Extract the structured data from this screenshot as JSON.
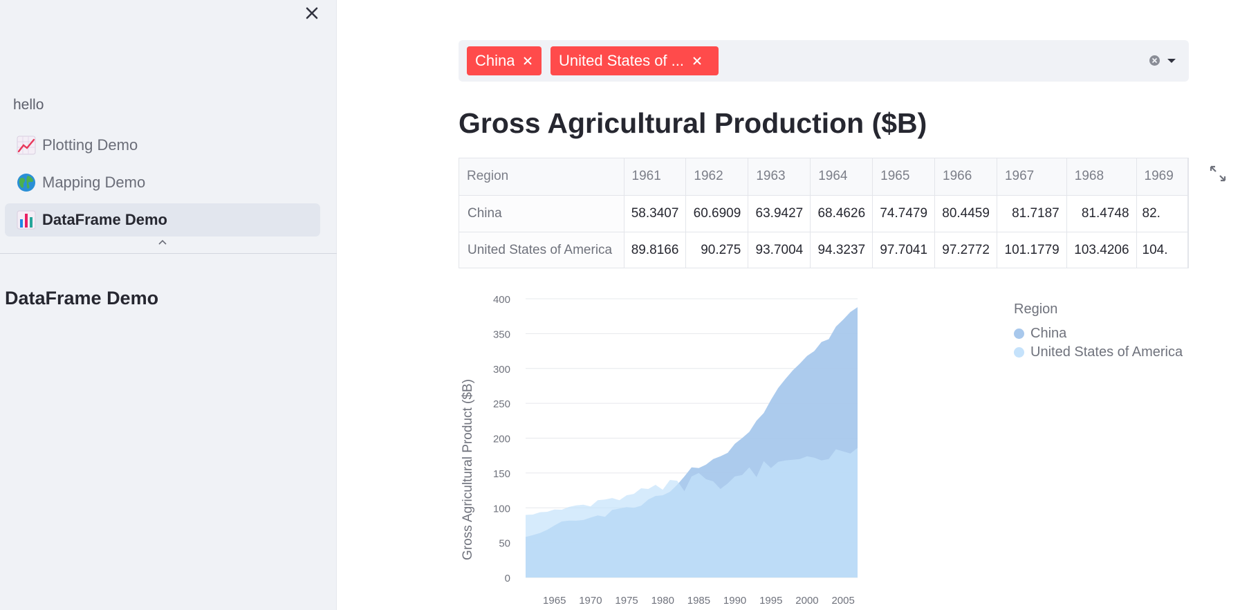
{
  "sidebar": {
    "heading": "hello",
    "items": [
      {
        "label": "Plotting Demo",
        "icon": "chart-increasing-icon",
        "active": false
      },
      {
        "label": "Mapping Demo",
        "icon": "globe-icon",
        "active": false
      },
      {
        "label": "DataFrame Demo",
        "icon": "bar-chart-icon",
        "active": true
      }
    ],
    "page_title": "DataFrame Demo"
  },
  "filter": {
    "tags": [
      "China",
      "United States of ..."
    ]
  },
  "main": {
    "title": "Gross Agricultural Production ($B)"
  },
  "table": {
    "columns": [
      "Region",
      "1961",
      "1962",
      "1963",
      "1964",
      "1965",
      "1966",
      "1967",
      "1968",
      "1969"
    ],
    "rows": [
      {
        "region": "China",
        "values": [
          "58.3407",
          "60.6909",
          "63.9427",
          "68.4626",
          "74.7479",
          "80.4459",
          "81.7187",
          "81.4748",
          "82."
        ]
      },
      {
        "region": "United States of America",
        "values": [
          "89.8166",
          "90.275",
          "93.7004",
          "94.3237",
          "97.7041",
          "97.2772",
          "101.1779",
          "103.4206",
          "104."
        ]
      }
    ]
  },
  "chart_data": {
    "type": "area",
    "stacked": false,
    "ylabel": "Gross Agricultural Product ($B)",
    "xlabel": "",
    "ylim": [
      0,
      400
    ],
    "xlim": [
      1961,
      2007
    ],
    "yticks": [
      0,
      50,
      100,
      150,
      200,
      250,
      300,
      350,
      400
    ],
    "xticks": [
      1965,
      1970,
      1975,
      1980,
      1985,
      1990,
      1995,
      2000,
      2005
    ],
    "legend_title": "Region",
    "legend_position": "right",
    "x": [
      1961,
      1962,
      1963,
      1964,
      1965,
      1966,
      1967,
      1968,
      1969,
      1970,
      1971,
      1972,
      1973,
      1974,
      1975,
      1976,
      1977,
      1978,
      1979,
      1980,
      1981,
      1982,
      1983,
      1984,
      1985,
      1986,
      1987,
      1988,
      1989,
      1990,
      1991,
      1992,
      1993,
      1994,
      1995,
      1996,
      1997,
      1998,
      1999,
      2000,
      2001,
      2002,
      2003,
      2004,
      2005,
      2006,
      2007
    ],
    "series": [
      {
        "name": "China",
        "color": "#a8c8ec",
        "values": [
          58.3,
          60.7,
          63.9,
          68.5,
          74.7,
          80.4,
          81.7,
          81.5,
          82.5,
          86,
          89,
          87,
          97,
          99,
          101,
          100,
          103,
          112,
          117,
          118,
          123,
          133,
          145,
          158,
          157,
          162,
          170,
          174,
          179,
          192,
          200,
          209,
          225,
          236,
          255,
          272,
          285,
          297,
          307,
          318,
          325,
          338,
          342,
          360,
          370,
          381,
          388
        ]
      },
      {
        "name": "United States of America",
        "color": "#c5e2fb",
        "values": [
          89.8,
          90.3,
          93.7,
          94.3,
          97.7,
          97.3,
          101.2,
          103.4,
          104.5,
          102,
          111,
          112,
          114,
          111,
          118,
          120,
          128,
          127,
          133,
          126,
          140,
          139,
          124,
          145,
          150,
          141,
          138,
          127,
          135,
          145,
          147,
          158,
          144,
          167,
          157,
          166,
          168,
          169,
          170,
          174,
          172,
          168,
          170,
          184,
          181,
          178,
          186
        ]
      }
    ]
  }
}
